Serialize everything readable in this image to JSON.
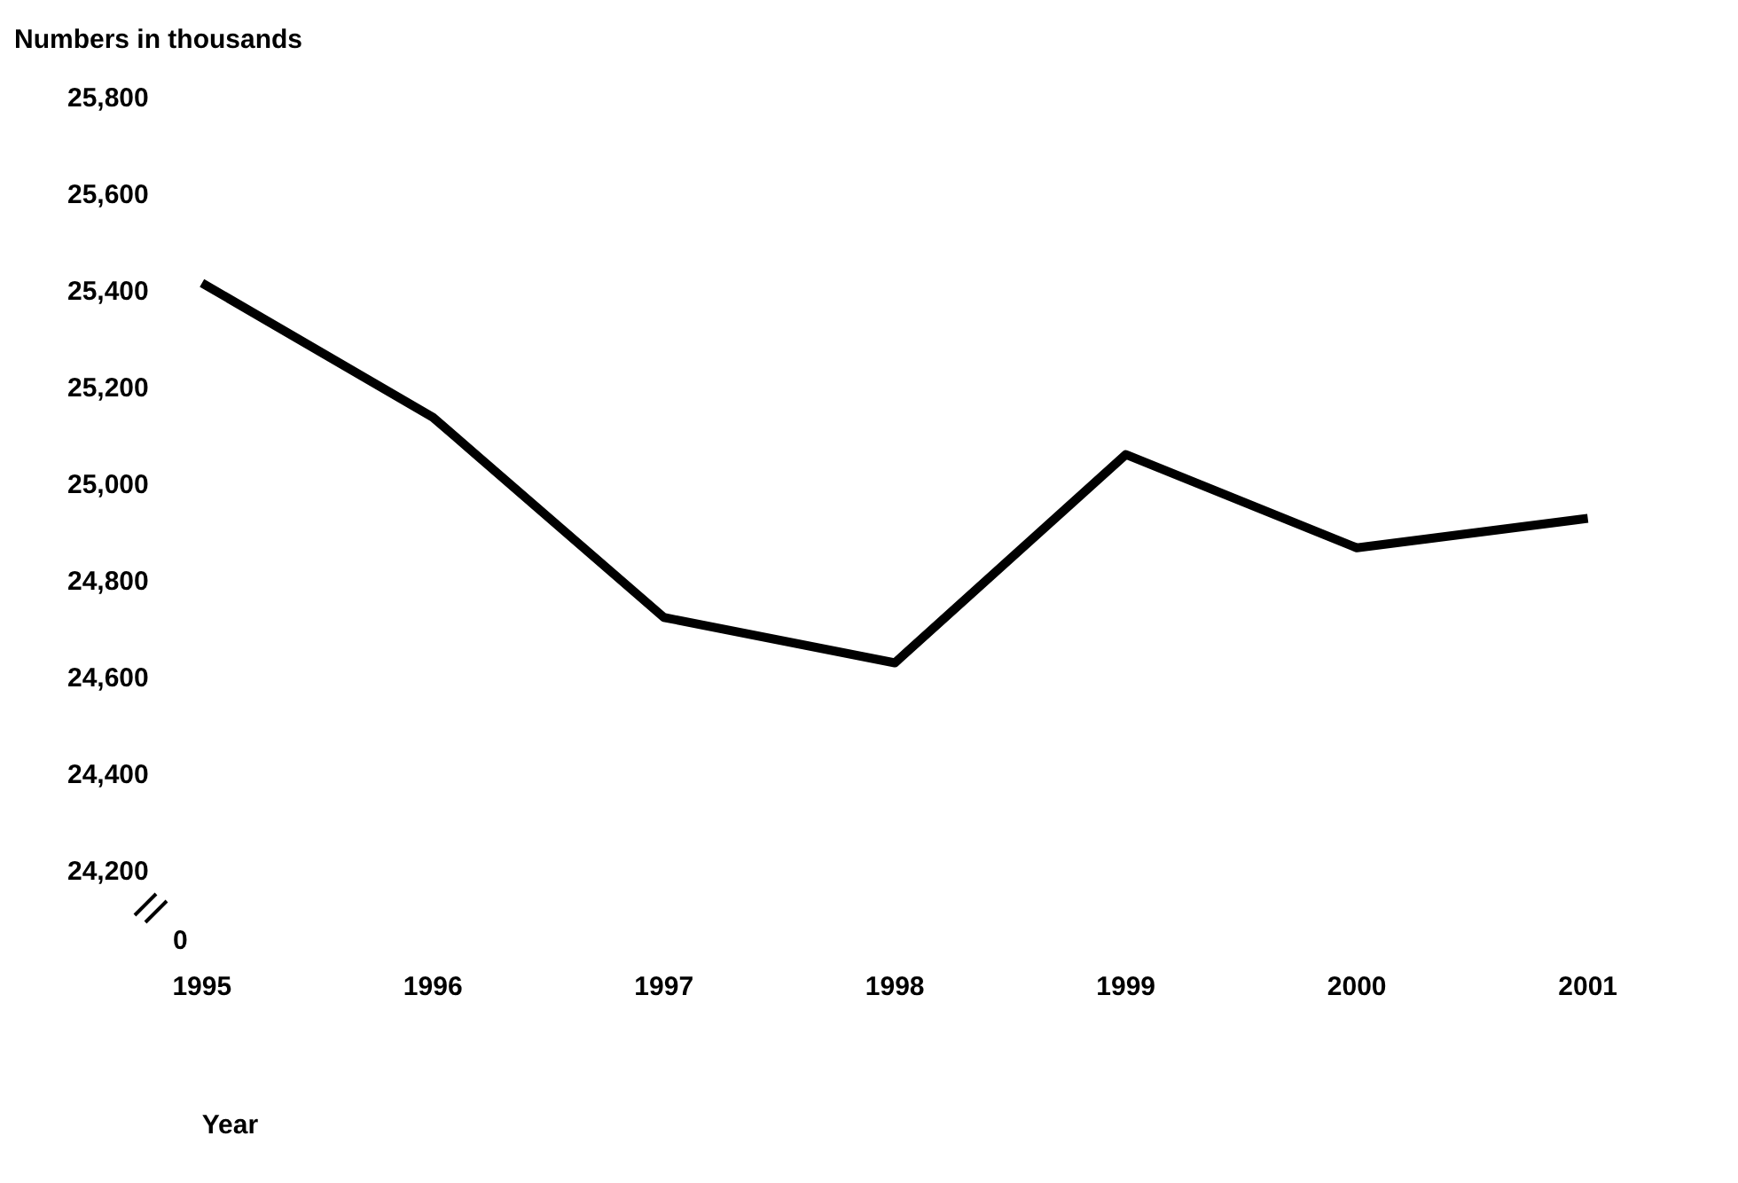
{
  "chart_data": {
    "type": "line",
    "title": "Numbers in thousands",
    "xlabel": "Year",
    "categories": [
      "1995",
      "1996",
      "1997",
      "1998",
      "1999",
      "2000",
      "2001"
    ],
    "series": [
      {
        "color": "#000000",
        "values": [
          25420,
          25142,
          24728,
          24634,
          25065,
          24872,
          24933
        ]
      }
    ],
    "ylim": [
      24200,
      25800
    ],
    "yticks": [
      {
        "value": 24200,
        "label": "24,200"
      },
      {
        "value": 24400,
        "label": "24,400"
      },
      {
        "value": 24600,
        "label": "24,600"
      },
      {
        "value": 24800,
        "label": "24,800"
      },
      {
        "value": 25000,
        "label": "25,000"
      },
      {
        "value": 25200,
        "label": "25,200"
      },
      {
        "value": 25400,
        "label": "25,400"
      },
      {
        "value": 25600,
        "label": "25,600"
      },
      {
        "value": 25800,
        "label": "25,800"
      }
    ],
    "annotations": [
      "0"
    ],
    "grid": false,
    "legend": false,
    "marker": "none",
    "line_style": "solid"
  }
}
